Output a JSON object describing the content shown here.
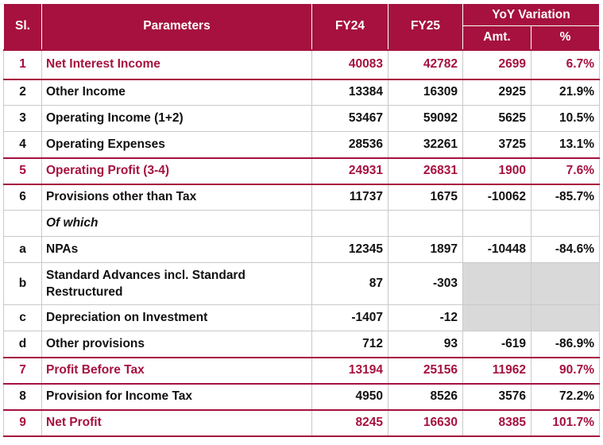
{
  "header": {
    "sl": "Sl.",
    "parameters": "Parameters",
    "fy24": "FY24",
    "fy25": "FY25",
    "yoy": "YoY Variation",
    "amt": "Amt.",
    "pct": "%"
  },
  "rows": [
    {
      "sl": "1",
      "param": "Net Interest Income",
      "fy24": "40083",
      "fy25": "42782",
      "amt": "2699",
      "pct": "6.7%"
    },
    {
      "sl": "2",
      "param": "Other Income",
      "fy24": "13384",
      "fy25": "16309",
      "amt": "2925",
      "pct": "21.9%"
    },
    {
      "sl": "3",
      "param": "Operating Income (1+2)",
      "fy24": "53467",
      "fy25": "59092",
      "amt": "5625",
      "pct": "10.5%"
    },
    {
      "sl": "4",
      "param": "Operating Expenses",
      "fy24": "28536",
      "fy25": "32261",
      "amt": "3725",
      "pct": "13.1%"
    },
    {
      "sl": "5",
      "param": "Operating Profit (3-4)",
      "fy24": "24931",
      "fy25": "26831",
      "amt": "1900",
      "pct": "7.6%"
    },
    {
      "sl": "6",
      "param": "Provisions other than Tax",
      "fy24": "11737",
      "fy25": "1675",
      "amt": "-10062",
      "pct": "-85.7%"
    },
    {
      "sl": "",
      "param": "Of which",
      "fy24": "",
      "fy25": "",
      "amt": "",
      "pct": ""
    },
    {
      "sl": "a",
      "param": "NPAs",
      "fy24": "12345",
      "fy25": "1897",
      "amt": "-10448",
      "pct": "-84.6%"
    },
    {
      "sl": "b",
      "param": "Standard Advances incl. Standard Restructured",
      "fy24": "87",
      "fy25": "-303",
      "amt": "",
      "pct": ""
    },
    {
      "sl": "c",
      "param": "Depreciation on Investment",
      "fy24": "-1407",
      "fy25": "-12",
      "amt": "",
      "pct": ""
    },
    {
      "sl": "d",
      "param": "Other provisions",
      "fy24": "712",
      "fy25": "93",
      "amt": "-619",
      "pct": "-86.9%"
    },
    {
      "sl": "7",
      "param": "Profit Before Tax",
      "fy24": "13194",
      "fy25": "25156",
      "amt": "11962",
      "pct": "90.7%"
    },
    {
      "sl": "8",
      "param": "Provision for Income Tax",
      "fy24": "4950",
      "fy25": "8526",
      "amt": "3576",
      "pct": "72.2%"
    },
    {
      "sl": "9",
      "param": "Net Profit",
      "fy24": "8245",
      "fy25": "16630",
      "amt": "8385",
      "pct": "101.7%"
    }
  ],
  "colors": {
    "header_bg": "#a6113f",
    "highlight_text": "#a6113f",
    "shade": "#d9d9d9"
  }
}
